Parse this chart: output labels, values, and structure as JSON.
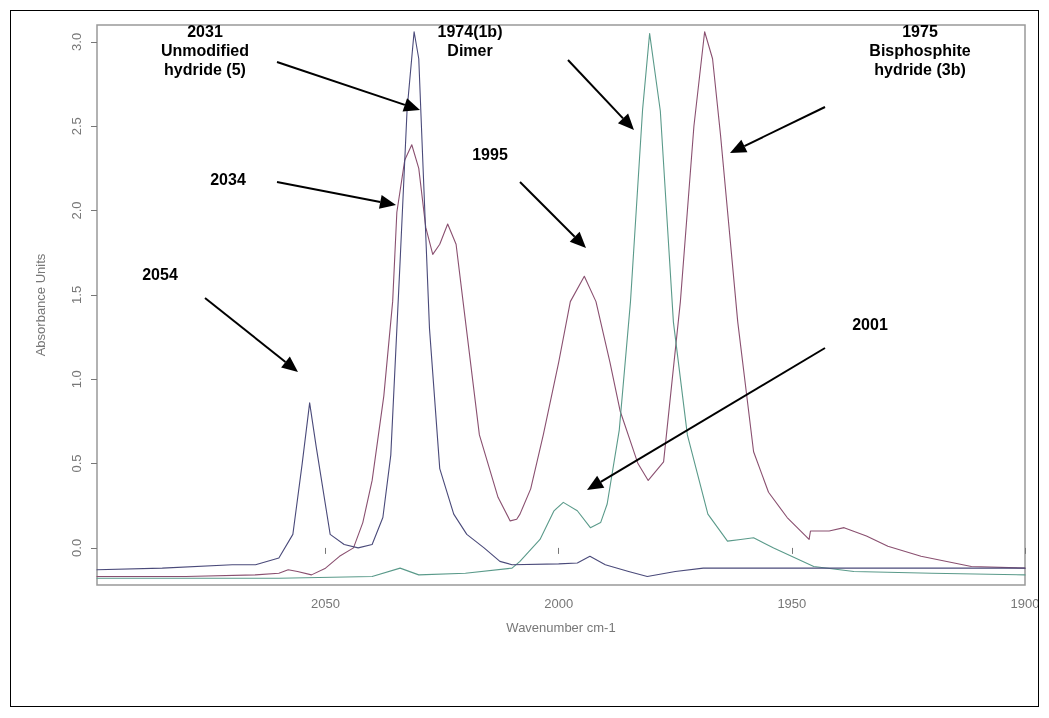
{
  "chart_data": {
    "type": "line",
    "xlabel": "Wavenumber cm-1",
    "ylabel": "Absorbance Units",
    "xlim": [
      2099,
      1900
    ],
    "xticks": [
      2050,
      2000,
      1950,
      1900
    ],
    "ylim": [
      -0.22,
      3.1
    ],
    "yticks": [
      {
        "value": 0,
        "label": "0.0"
      },
      {
        "value": 0.5,
        "label": "0.5"
      },
      {
        "value": 1,
        "label": "1.0"
      },
      {
        "value": 1.5,
        "label": "1.5"
      },
      {
        "value": 2,
        "label": "2.0"
      },
      {
        "value": 2.5,
        "label": "2.5"
      },
      {
        "value": 3,
        "label": "3.0"
      }
    ],
    "grid": false,
    "marker": "none",
    "line_style": "solid",
    "series": [
      {
        "color": "#8a5070",
        "x": [
          2099,
          2080,
          2065,
          2060,
          2058,
          2056,
          2053,
          2050,
          2047,
          2044,
          2042,
          2040,
          2037.5,
          2035.6,
          2034.7,
          2033,
          2031.5,
          2030,
          2028.5,
          2027,
          2025.5,
          2023.8,
          2022,
          2020.5,
          2017,
          2013,
          2010.4,
          2009,
          2008.3,
          2006,
          2003.3,
          2000,
          1997.5,
          1994.5,
          1992,
          1989,
          1986.8,
          1983,
          1980.8,
          1977.5,
          1973.9,
          1971,
          1968.7,
          1967,
          1965.3,
          1961.6,
          1958.2,
          1955,
          1951,
          1946.3,
          1946,
          1942,
          1938.8,
          1934,
          1929.4,
          1922.3,
          1911.5,
          1900
        ],
        "values": [
          -0.17,
          -0.17,
          -0.16,
          -0.15,
          -0.13,
          -0.14,
          -0.16,
          -0.12,
          -0.05,
          0.0,
          0.15,
          0.4,
          0.9,
          1.46,
          1.99,
          2.3,
          2.39,
          2.25,
          1.9,
          1.74,
          1.8,
          1.92,
          1.8,
          1.46,
          0.67,
          0.3,
          0.16,
          0.17,
          0.2,
          0.35,
          0.67,
          1.1,
          1.46,
          1.61,
          1.46,
          1.1,
          0.81,
          0.5,
          0.4,
          0.51,
          1.46,
          2.5,
          3.06,
          2.9,
          2.45,
          1.34,
          0.57,
          0.33,
          0.18,
          0.05,
          0.1,
          0.1,
          0.12,
          0.07,
          0.01,
          -0.05,
          -0.11,
          -0.12
        ]
      },
      {
        "color": "#5a9a8a",
        "x": [
          2099,
          2060,
          2040,
          2034,
          2030,
          2020,
          2010,
          2008.3,
          2004,
          2001,
          1999,
          1996,
          1993.2,
          1991,
          1989.6,
          1987,
          1984.6,
          1982,
          1980.5,
          1978.2,
          1975.4,
          1972.4,
          1968,
          1963.8,
          1961,
          1958.2,
          1953.9,
          1945.3,
          1936.7,
          1920,
          1900
        ],
        "values": [
          -0.18,
          -0.18,
          -0.17,
          -0.12,
          -0.16,
          -0.15,
          -0.12,
          -0.08,
          0.05,
          0.22,
          0.27,
          0.22,
          0.12,
          0.15,
          0.26,
          0.7,
          1.46,
          2.6,
          3.05,
          2.59,
          1.34,
          0.67,
          0.2,
          0.04,
          0.05,
          0.06,
          0.0,
          -0.11,
          -0.14,
          -0.15,
          -0.16
        ]
      },
      {
        "color": "#4a4a7a",
        "x": [
          2099,
          2085,
          2070,
          2065,
          2060,
          2057,
          2055,
          2053.4,
          2052,
          2049,
          2046,
          2043,
          2040,
          2037.7,
          2036,
          2034,
          2032.5,
          2031,
          2030,
          2029,
          2027.7,
          2025.5,
          2022.5,
          2019.7,
          2016,
          2012.6,
          2010,
          2000,
          1996,
          1993.3,
          1990,
          1985,
          1981,
          1975,
          1969,
          1950,
          1900
        ],
        "values": [
          -0.13,
          -0.12,
          -0.1,
          -0.1,
          -0.06,
          0.08,
          0.5,
          0.86,
          0.6,
          0.08,
          0.02,
          0.0,
          0.02,
          0.18,
          0.55,
          1.7,
          2.6,
          3.06,
          2.9,
          2.2,
          1.3,
          0.47,
          0.2,
          0.08,
          0.0,
          -0.08,
          -0.1,
          -0.095,
          -0.09,
          -0.05,
          -0.1,
          -0.14,
          -0.17,
          -0.14,
          -0.12,
          -0.12,
          -0.12
        ]
      }
    ],
    "annotations": [
      "2031\nUnmodified\nhydride (5)",
      "1974(1b)\nDimer",
      "1975\nBisphosphite\nhydride (3b)",
      "2034",
      "1995",
      "2054",
      "2001"
    ]
  }
}
